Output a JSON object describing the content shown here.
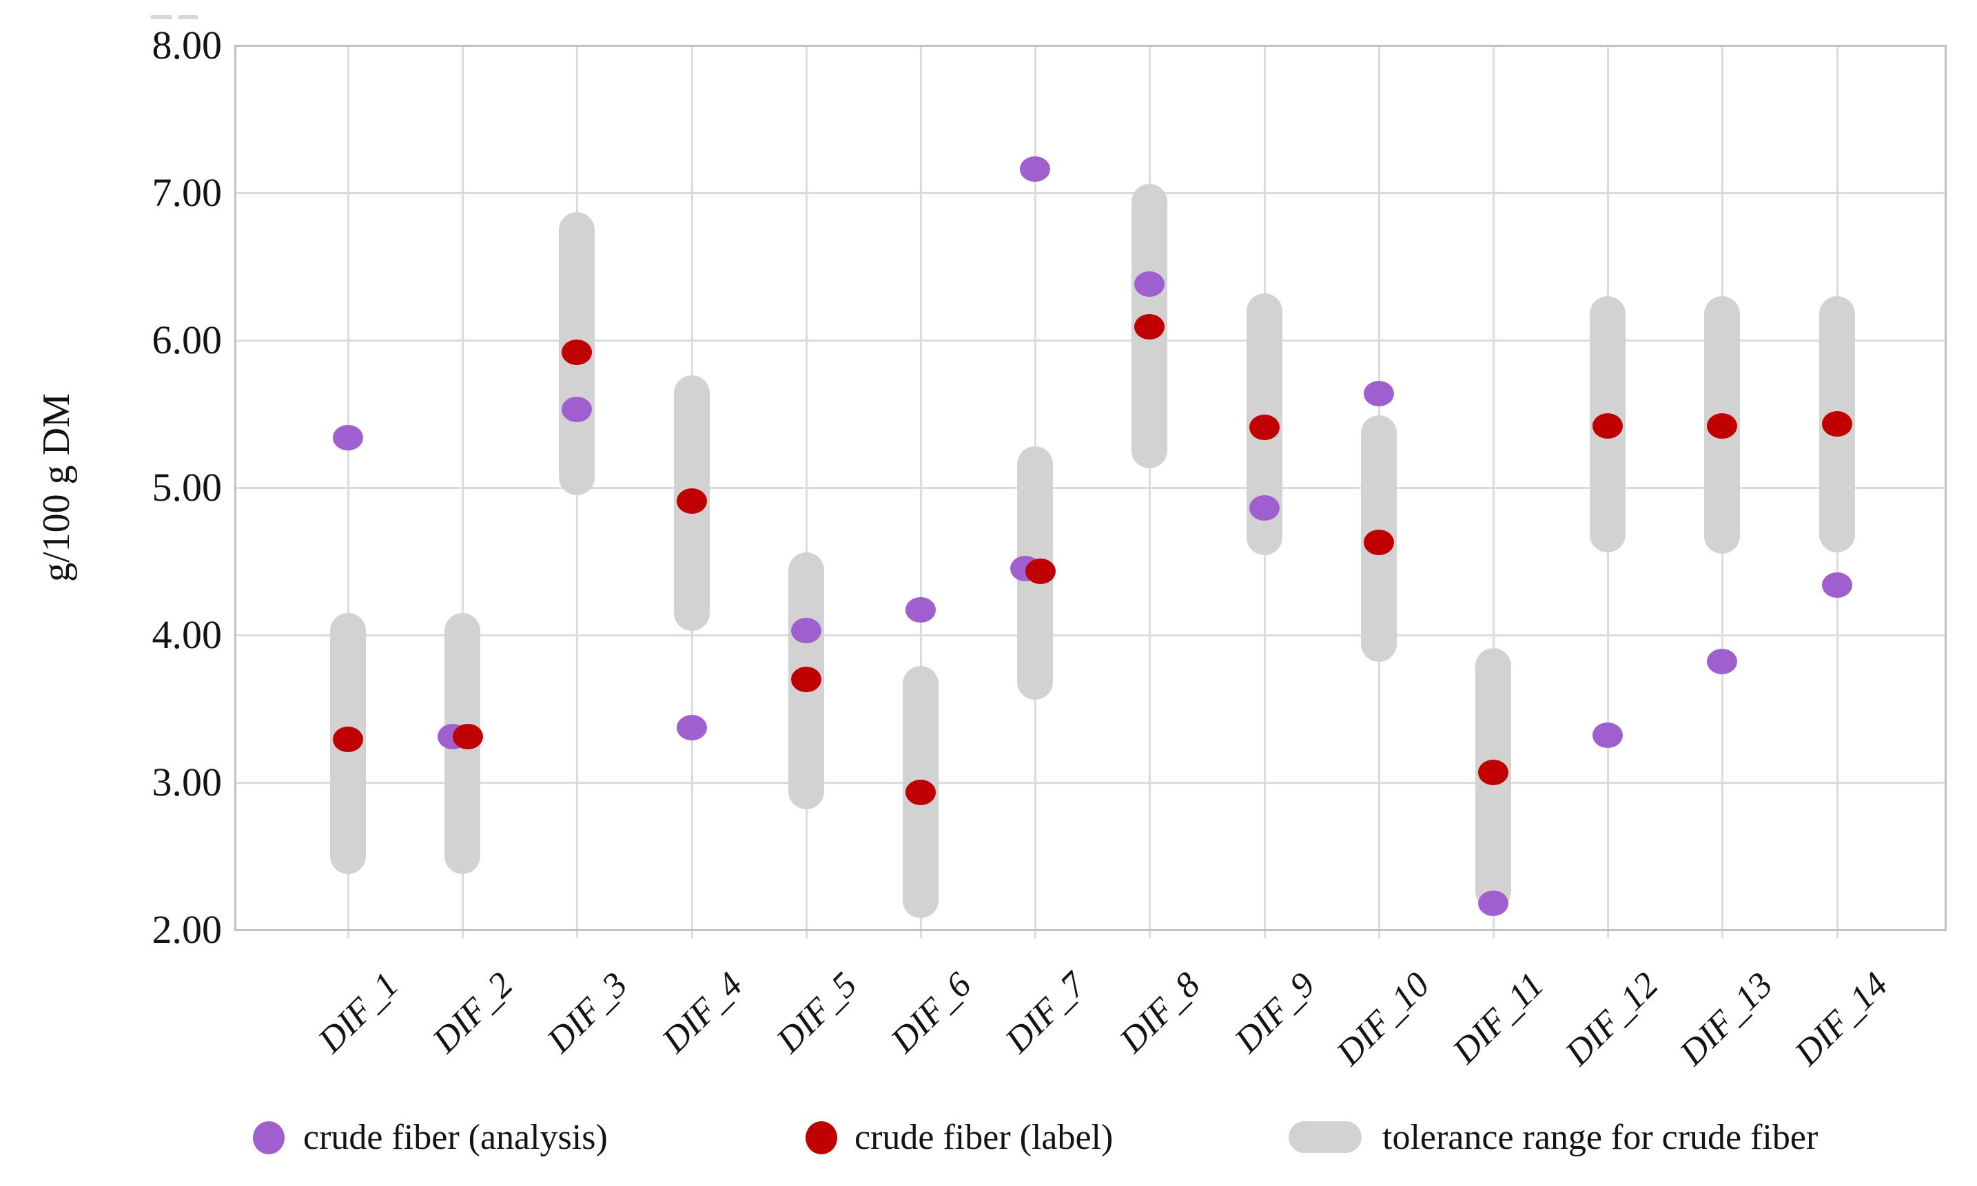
{
  "figure": {
    "background": "#ffffff",
    "text_color": "#131313"
  },
  "chart_data": {
    "type": "scatter",
    "title": "",
    "xlabel": "",
    "ylabel": "g/100 g DM",
    "ylim": [
      2.0,
      8.0
    ],
    "ytick_labels": [
      "8.00",
      "7.00",
      "6.00",
      "5.00",
      "4.00",
      "3.00",
      "2.00"
    ],
    "ytick_values": [
      8,
      7,
      6,
      5,
      4,
      3,
      2
    ],
    "grid": true,
    "legend_position": "bottom",
    "categories": [
      "DIF_1",
      "DIF_2",
      "DIF_3",
      "DIF_4",
      "DIF_5",
      "DIF_6",
      "DIF_7",
      "DIF_8",
      "DIF_9",
      "DIF_10",
      "DIF_11",
      "DIF_12",
      "DIF_13",
      "DIF_14"
    ],
    "series": [
      {
        "name": "crude fiber (analysis)",
        "type": "points",
        "color": "#a05fce",
        "values": [
          5.34,
          3.31,
          5.53,
          3.37,
          4.03,
          4.17,
          7.16,
          6.38,
          4.86,
          5.64,
          2.18,
          3.32,
          3.82,
          4.34
        ]
      },
      {
        "name": "crude fiber (label)",
        "type": "points",
        "color": "#c00000",
        "values": [
          3.29,
          3.31,
          5.92,
          4.91,
          3.7,
          2.93,
          4.43,
          6.09,
          5.41,
          4.63,
          3.07,
          5.42,
          5.42,
          5.43
        ]
      },
      {
        "name": "tolerance range for crude fiber",
        "type": "ranges",
        "color": "#d2d2d2",
        "low": [
          2.38,
          2.38,
          4.95,
          4.03,
          2.82,
          2.08,
          3.56,
          5.13,
          4.54,
          3.82,
          2.14,
          4.56,
          4.55,
          4.56
        ],
        "high": [
          4.15,
          4.15,
          6.87,
          5.76,
          4.56,
          3.79,
          5.28,
          7.06,
          6.32,
          5.49,
          3.91,
          6.3,
          6.3,
          6.3
        ]
      }
    ],
    "extra_points": [
      {
        "series": "crude fiber (analysis)",
        "category": "DIF_7",
        "value": 4.45
      }
    ]
  }
}
